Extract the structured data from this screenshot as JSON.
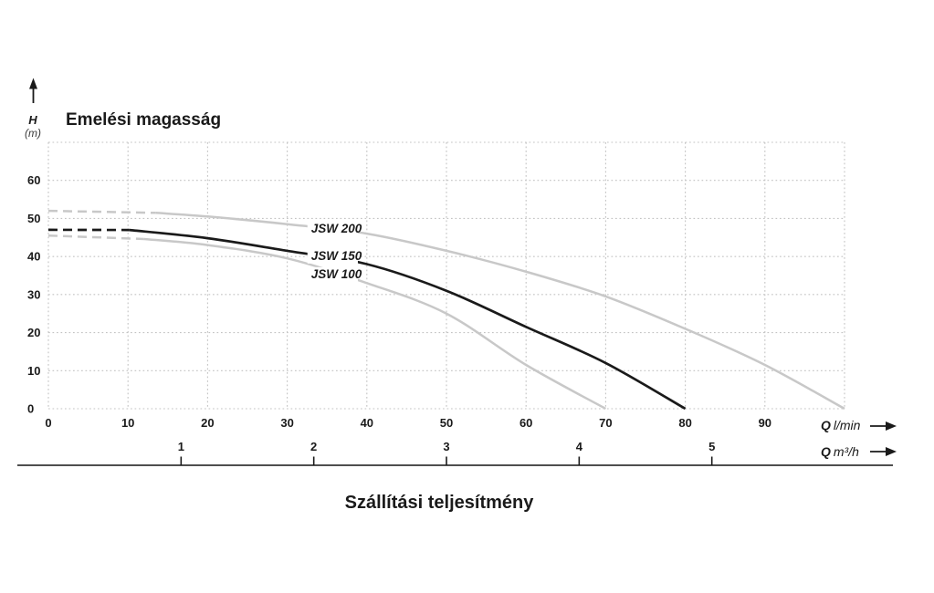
{
  "chart_data": {
    "type": "line",
    "title": "Emelési magasság",
    "xlabel": "Szállítási teljesítmény",
    "ylabel": "H (m)",
    "grid": "dotted",
    "legend": "inline-curve-labels",
    "y_axis": {
      "symbol": "H",
      "unit": "(m)",
      "ticks": [
        0,
        10,
        20,
        30,
        40,
        50,
        60
      ],
      "range": [
        0,
        70
      ],
      "gridstep": 10
    },
    "x_axis_primary": {
      "symbol": "Q",
      "unit": "l/min",
      "ticks": [
        0,
        10,
        20,
        30,
        40,
        50,
        60,
        70,
        80,
        90
      ],
      "range": [
        0,
        100
      ],
      "gridstep": 10
    },
    "x_axis_secondary": {
      "symbol": "Q",
      "unit": "m³/h",
      "ticks": [
        1,
        2,
        3,
        4,
        5
      ],
      "lmin_per_unit": 16.667
    },
    "series": [
      {
        "name": "JSW 200",
        "color": "#c8c8c8",
        "label_color": "#b2b2b2",
        "dashed_until": 13.5,
        "label_at": [
          33,
          47.3
        ],
        "points": [
          [
            0,
            52
          ],
          [
            10,
            52
          ],
          [
            20,
            50.5
          ],
          [
            30,
            48.5
          ],
          [
            40,
            46
          ],
          [
            50,
            41.5
          ],
          [
            60,
            36
          ],
          [
            70,
            29.5
          ],
          [
            80,
            21
          ],
          [
            90,
            11.5
          ],
          [
            100,
            0
          ]
        ]
      },
      {
        "name": "JSW 150",
        "color": "#1a1a1a",
        "label_color": "#1a1a1a",
        "dashed_until": 10.2,
        "label_at": [
          33,
          40.2
        ],
        "points": [
          [
            0,
            47
          ],
          [
            10,
            47
          ],
          [
            20,
            44.8
          ],
          [
            30,
            41.5
          ],
          [
            40,
            38
          ],
          [
            50,
            31
          ],
          [
            60,
            21.5
          ],
          [
            70,
            12
          ],
          [
            80,
            0
          ]
        ]
      },
      {
        "name": "JSW 100",
        "color": "#c8c8c8",
        "label_color": "#b2b2b2",
        "dashed_until": 12,
        "label_at": [
          33,
          35.4
        ],
        "points": [
          [
            0,
            45.5
          ],
          [
            10,
            45
          ],
          [
            20,
            43
          ],
          [
            30,
            39.5
          ],
          [
            40,
            33
          ],
          [
            50,
            25
          ],
          [
            60,
            11.5
          ],
          [
            70,
            0
          ]
        ]
      }
    ]
  },
  "colors": {
    "background": "#ffffff",
    "grid": "#c3c3c3",
    "axis_text": "#1a1a1a",
    "secondary_axis_line": "#4f4f4f",
    "gray_curve": "#c8c8c8",
    "black_curve": "#1a1a1a"
  }
}
